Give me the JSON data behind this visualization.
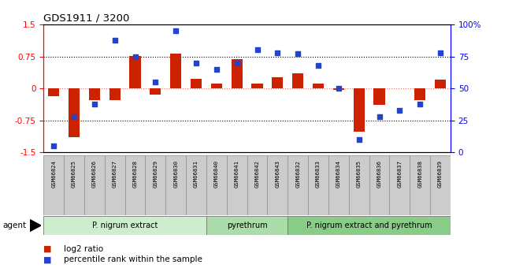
{
  "title": "GDS1911 / 3200",
  "samples": [
    "GSM66824",
    "GSM66825",
    "GSM66826",
    "GSM66827",
    "GSM66828",
    "GSM66829",
    "GSM66830",
    "GSM66831",
    "GSM66840",
    "GSM66841",
    "GSM66842",
    "GSM66843",
    "GSM66832",
    "GSM66833",
    "GSM66834",
    "GSM66835",
    "GSM66836",
    "GSM66837",
    "GSM66838",
    "GSM66839"
  ],
  "log2_ratio": [
    -0.18,
    -1.15,
    -0.28,
    -0.28,
    0.77,
    -0.15,
    0.82,
    0.22,
    0.12,
    0.68,
    0.12,
    0.27,
    0.35,
    0.12,
    -0.04,
    -1.02,
    -0.38,
    0.0,
    -0.28,
    0.2
  ],
  "percentile": [
    5,
    28,
    38,
    88,
    75,
    55,
    95,
    70,
    65,
    70,
    80,
    78,
    77,
    68,
    50,
    10,
    28,
    33,
    38,
    78
  ],
  "groups": [
    {
      "label": "P. nigrum extract",
      "start": 0,
      "end": 8,
      "color": "#cceecc"
    },
    {
      "label": "pyrethrum",
      "start": 8,
      "end": 12,
      "color": "#aaddaa"
    },
    {
      "label": "P. nigrum extract and pyrethrum",
      "start": 12,
      "end": 20,
      "color": "#88cc88"
    }
  ],
  "bar_color": "#cc2200",
  "dot_color": "#2244cc",
  "ylim": [
    -1.5,
    1.5
  ],
  "y2lim": [
    0,
    100
  ],
  "yticks": [
    -1.5,
    -0.75,
    0.0,
    0.75,
    1.5
  ],
  "y2ticks": [
    0,
    25,
    50,
    75,
    100
  ],
  "hline_positions": [
    0.75,
    0.0,
    -0.75
  ],
  "background_color": "#ffffff",
  "bar_width": 0.55,
  "agent_label": "agent",
  "legend_bar_label": "log2 ratio",
  "legend_dot_label": "percentile rank within the sample"
}
